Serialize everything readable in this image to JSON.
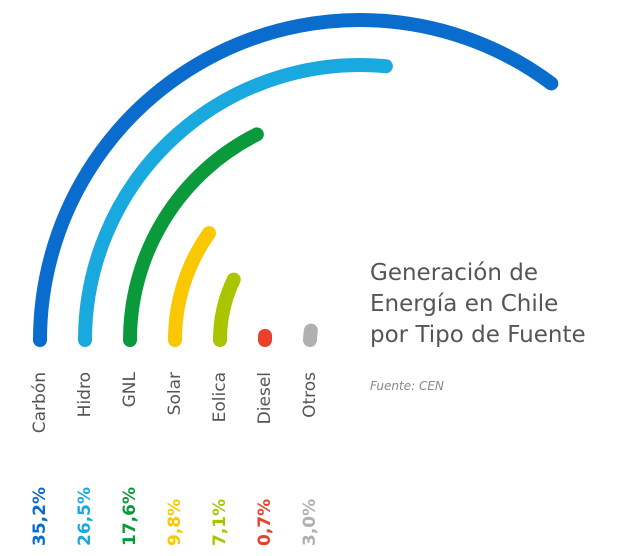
{
  "chart_data": {
    "type": "radial_bar",
    "title": [
      "Generación de",
      "Energía en Chile",
      "por Tipo de Fuente"
    ],
    "subtitle": "Fuente: CEN",
    "categories": [
      "Carbón",
      "Hidro",
      "GNL",
      "Solar",
      "Eolica",
      "Diesel",
      "Otros"
    ],
    "values": [
      35.2,
      26.5,
      17.6,
      9.8,
      7.1,
      0.7,
      3.0
    ],
    "value_labels": [
      "35,2%",
      "26,5%",
      "17,6%",
      "9,8%",
      "7,1%",
      "0,7%",
      "3,0%"
    ],
    "colors": [
      "#0a6ccc",
      "#1aa9de",
      "#0a9a3c",
      "#f9c800",
      "#a8c500",
      "#e8402a",
      "#b0b0b0"
    ]
  }
}
